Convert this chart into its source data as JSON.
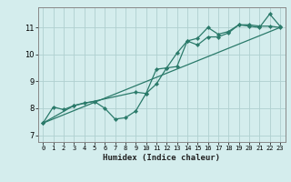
{
  "xlabel": "Humidex (Indice chaleur)",
  "bg_color": "#d4eded",
  "grid_color": "#b0d0d0",
  "line_color": "#2a7a6a",
  "spine_color": "#888888",
  "xlim": [
    -0.5,
    23.5
  ],
  "ylim": [
    6.75,
    11.75
  ],
  "xticks": [
    0,
    1,
    2,
    3,
    4,
    5,
    6,
    7,
    8,
    9,
    10,
    11,
    12,
    13,
    14,
    15,
    16,
    17,
    18,
    19,
    20,
    21,
    22,
    23
  ],
  "yticks": [
    7,
    8,
    9,
    10,
    11
  ],
  "line1_x": [
    0,
    1,
    2,
    3,
    4,
    5,
    6,
    7,
    8,
    9,
    10,
    11,
    12,
    13,
    14,
    15,
    16,
    17,
    18,
    19,
    20,
    21,
    22,
    23
  ],
  "line1_y": [
    7.45,
    8.05,
    7.95,
    8.1,
    8.2,
    8.25,
    8.0,
    7.6,
    7.65,
    7.9,
    8.55,
    8.9,
    9.5,
    10.05,
    10.5,
    10.6,
    11.0,
    10.75,
    10.85,
    11.1,
    11.05,
    11.0,
    11.5,
    11.05
  ],
  "line2_x": [
    0,
    3,
    9,
    10,
    11,
    12,
    13,
    14,
    15,
    16,
    17,
    18,
    19,
    20,
    21,
    22,
    23
  ],
  "line2_y": [
    7.45,
    8.1,
    8.6,
    8.55,
    9.45,
    9.5,
    9.55,
    10.5,
    10.35,
    10.65,
    10.65,
    10.8,
    11.1,
    11.1,
    11.05,
    11.05,
    11.0
  ],
  "line3_x": [
    0,
    23
  ],
  "line3_y": [
    7.45,
    11.0
  ]
}
